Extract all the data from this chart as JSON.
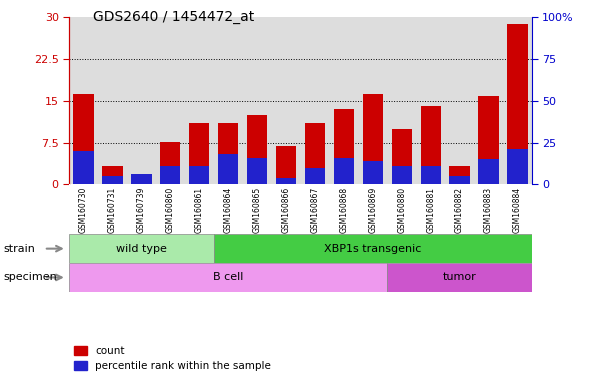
{
  "title": "GDS2640 / 1454472_at",
  "samples": [
    "GSM160730",
    "GSM160731",
    "GSM160739",
    "GSM160860",
    "GSM160861",
    "GSM160864",
    "GSM160865",
    "GSM160866",
    "GSM160867",
    "GSM160868",
    "GSM160869",
    "GSM160880",
    "GSM160881",
    "GSM160882",
    "GSM160883",
    "GSM160884"
  ],
  "count_values": [
    16.2,
    3.3,
    1.4,
    7.6,
    11.0,
    11.0,
    12.5,
    6.8,
    11.0,
    13.5,
    16.2,
    10.0,
    14.0,
    3.3,
    15.8,
    28.8
  ],
  "percentile_values": [
    20.0,
    5.0,
    6.0,
    11.0,
    11.0,
    18.0,
    16.0,
    4.0,
    10.0,
    16.0,
    14.0,
    11.0,
    11.0,
    5.0,
    15.0,
    21.0
  ],
  "bar_color_red": "#cc0000",
  "bar_color_blue": "#2222cc",
  "ylim_left": [
    0,
    30
  ],
  "ylim_right": [
    0,
    100
  ],
  "yticks_left": [
    0,
    7.5,
    15,
    22.5,
    30
  ],
  "yticks_right": [
    0,
    25,
    50,
    75,
    100
  ],
  "ytick_labels_left": [
    "0",
    "7.5",
    "15",
    "22.5",
    "30"
  ],
  "ytick_labels_right": [
    "0",
    "25",
    "50",
    "75",
    "100%"
  ],
  "strain_groups": [
    {
      "text": "wild type",
      "start": 0,
      "end": 5,
      "color": "#aaeaaa"
    },
    {
      "text": "XBP1s transgenic",
      "start": 5,
      "end": 16,
      "color": "#44cc44"
    }
  ],
  "specimen_groups": [
    {
      "text": "B cell",
      "start": 0,
      "end": 11,
      "color": "#ee99ee"
    },
    {
      "text": "tumor",
      "start": 11,
      "end": 16,
      "color": "#cc55cc"
    }
  ],
  "legend_count_label": "count",
  "legend_percentile_label": "percentile rank within the sample",
  "strain_row_label": "strain",
  "specimen_row_label": "specimen",
  "plot_bg": "#dddddd",
  "xtick_bg": "#cccccc",
  "axis_color_left": "#cc0000",
  "axis_color_right": "#0000cc",
  "bar_width": 0.7
}
